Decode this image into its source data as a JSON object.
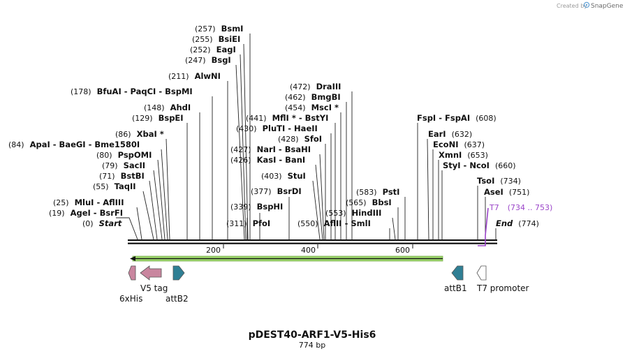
{
  "branding": {
    "created_by": "Created by",
    "app_name": "SnapGene"
  },
  "map": {
    "name": "pDEST40-ARF1-V5-His6",
    "length_label": "774 bp",
    "ticks": [
      "200",
      "400",
      "600"
    ],
    "start_label": "(0)",
    "start_name": "Start",
    "end_name": "End",
    "end_label": "(774)"
  },
  "sites": [
    {
      "pos": "(19)",
      "name": "AgeI  -  BsrFI"
    },
    {
      "pos": "(25)",
      "name": "MluI  -  AflIII"
    },
    {
      "pos": "(55)",
      "name": "TaqII"
    },
    {
      "pos": "(71)",
      "name": "BstBI"
    },
    {
      "pos": "(79)",
      "name": "SacII"
    },
    {
      "pos": "(80)",
      "name": "PspOMI"
    },
    {
      "pos": "(84)",
      "name": "ApaI  -  BaeGI  -  Bme1580I"
    },
    {
      "pos": "(86)",
      "name": "XbaI *"
    },
    {
      "pos": "(129)",
      "name": "BspEI"
    },
    {
      "pos": "(148)",
      "name": "AhdI"
    },
    {
      "pos": "(178)",
      "name": "BfuAI  -  PaqCI  -  BspMI"
    },
    {
      "pos": "(211)",
      "name": "AlwNI"
    },
    {
      "pos": "(247)",
      "name": "BsgI"
    },
    {
      "pos": "(252)",
      "name": "EagI"
    },
    {
      "pos": "(255)",
      "name": "BsiEI"
    },
    {
      "pos": "(257)",
      "name": "BsmI"
    },
    {
      "pos": "(311)",
      "name": "PfoI"
    },
    {
      "pos": "(339)",
      "name": "BspHI"
    },
    {
      "pos": "(377)",
      "name": "BsrDI"
    },
    {
      "pos": "(403)",
      "name": "StuI"
    },
    {
      "pos": "(426)",
      "name": "KasI  -  BanI"
    },
    {
      "pos": "(427)",
      "name": "NarI  -  BsaHI"
    },
    {
      "pos": "(428)",
      "name": "SfoI"
    },
    {
      "pos": "(430)",
      "name": "PluTI  -  HaeII"
    },
    {
      "pos": "(441)",
      "name": "MflI *  -  BstYI"
    },
    {
      "pos": "(454)",
      "name": "MscI *"
    },
    {
      "pos": "(462)",
      "name": "BmgBI"
    },
    {
      "pos": "(472)",
      "name": "DraIII"
    },
    {
      "pos": "(550)",
      "name": "AflII  -  SmlI"
    },
    {
      "pos": "(553)",
      "name": "HindIII"
    },
    {
      "pos": "(565)",
      "name": "BbsI"
    },
    {
      "pos": "(583)",
      "name": "PstI"
    },
    {
      "pos": "(608)",
      "name": "FspI  -  FspAI"
    },
    {
      "pos": "(632)",
      "name": "EarI"
    },
    {
      "pos": "(637)",
      "name": "EcoNI"
    },
    {
      "pos": "(653)",
      "name": "XmnI"
    },
    {
      "pos": "(660)",
      "name": "StyI  -  NcoI"
    },
    {
      "pos": "(734)",
      "name": "TsoI"
    },
    {
      "pos": "(751)",
      "name": "AseI"
    }
  ],
  "primer": {
    "name": "T7",
    "range": "(734 .. 753)",
    "color": "#9b45c9"
  },
  "features": [
    {
      "name": "6xHis",
      "color": "#c9869f"
    },
    {
      "name": "V5 tag",
      "color": "#c9869f"
    },
    {
      "name": "attB2",
      "color": "#2f7f94"
    },
    {
      "name": "attB1",
      "color": "#2f7f94"
    },
    {
      "name": "T7 promoter",
      "color": "#ffffff"
    }
  ],
  "orf": {
    "color": "#9bd46a"
  }
}
